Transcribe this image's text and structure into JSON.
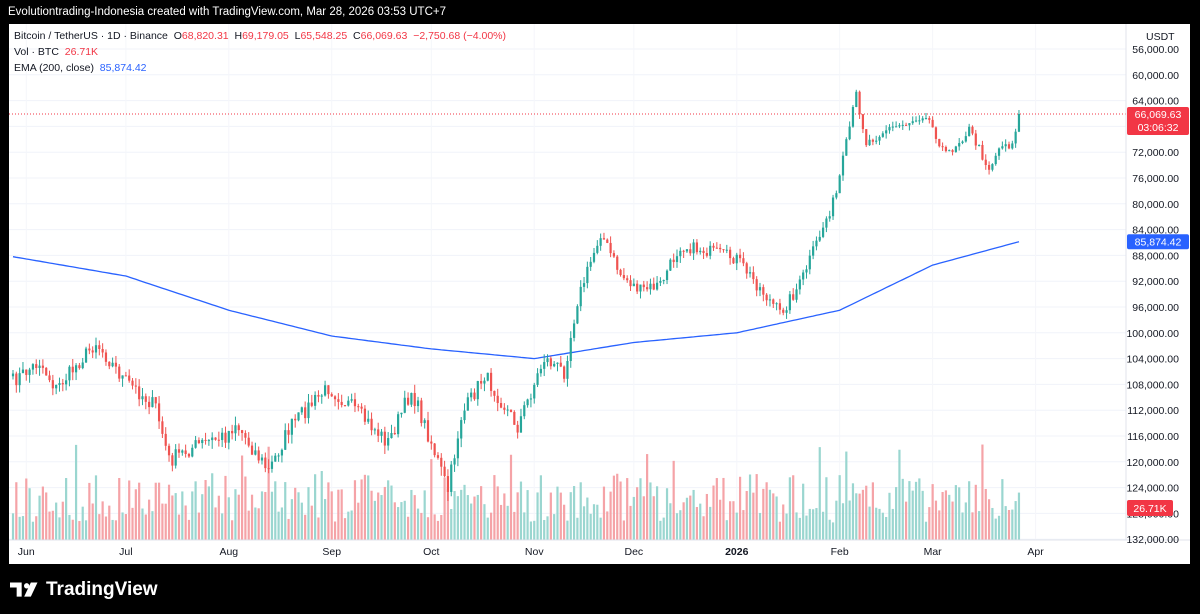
{
  "watermark_text": "Evolutiontrading-Indonesia created with TradingView.com, Mar 28, 2026 03:53 UTC+7",
  "legend": {
    "symbol": "Bitcoin / TetherUS · 1D · Binance",
    "open_label": "O",
    "open": "68,820.31",
    "high_label": "H",
    "high": "69,179.05",
    "low_label": "L",
    "low": "65,548.25",
    "close_label": "C",
    "close": "66,069.63",
    "change": "−2,750.68 (−4.00%)",
    "vol_label": "Vol · BTC",
    "vol_value": "26.71K",
    "ema_label": "EMA (200, close)",
    "ema_value": "85,874.42"
  },
  "brand": {
    "name": "TradingView",
    "icon": "tradingview-logo-icon"
  },
  "colors": {
    "up": "#26a69a",
    "down": "#ef5350",
    "ema": "#2962ff",
    "vol_up": "#9ad6d0",
    "vol_down": "#f5a3a7",
    "price_tag": "#f23645"
  },
  "chart_data": {
    "type": "candlestick",
    "currency": "USDT",
    "y_scale": "inverted",
    "yticks": [
      "56,000.00",
      "60,000.00",
      "64,000.00",
      "68,000.00",
      "72,000.00",
      "76,000.00",
      "80,000.00",
      "84,000.00",
      "88,000.00",
      "92,000.00",
      "96,000.00",
      "100,000.00",
      "104,000.00",
      "108,000.00",
      "112,000.00",
      "116,000.00",
      "120,000.00",
      "124,000.00",
      "128,000.00",
      "132,000.00"
    ],
    "xticks": [
      "Jun",
      "Jul",
      "Aug",
      "Sep",
      "Oct",
      "Nov",
      "Dec",
      "2026",
      "Feb",
      "Mar",
      "Apr"
    ],
    "last_price": "66,069.63",
    "countdown": "03:06:32",
    "ema_last": "85,874.42",
    "volume_last": "26.71K",
    "price_keypoints": [
      {
        "date": "2025-05-28",
        "price": 107500
      },
      {
        "date": "2025-06-05",
        "price": 104500
      },
      {
        "date": "2025-06-10",
        "price": 108700
      },
      {
        "date": "2025-06-22",
        "price": 101500
      },
      {
        "date": "2025-06-30",
        "price": 107000
      },
      {
        "date": "2025-07-10",
        "price": 111500
      },
      {
        "date": "2025-07-14",
        "price": 119800
      },
      {
        "date": "2025-07-22",
        "price": 117500
      },
      {
        "date": "2025-07-31",
        "price": 116000
      },
      {
        "date": "2025-08-03",
        "price": 114000
      },
      {
        "date": "2025-08-13",
        "price": 121500
      },
      {
        "date": "2025-08-19",
        "price": 115000
      },
      {
        "date": "2025-08-24",
        "price": 112000
      },
      {
        "date": "2025-08-31",
        "price": 108500
      },
      {
        "date": "2025-09-07",
        "price": 111500
      },
      {
        "date": "2025-09-18",
        "price": 117000
      },
      {
        "date": "2025-09-25",
        "price": 109000
      },
      {
        "date": "2025-10-01",
        "price": 117000
      },
      {
        "date": "2025-10-06",
        "price": 124500
      },
      {
        "date": "2025-10-10",
        "price": 113000
      },
      {
        "date": "2025-10-17",
        "price": 106500
      },
      {
        "date": "2025-10-27",
        "price": 114500
      },
      {
        "date": "2025-11-04",
        "price": 104000
      },
      {
        "date": "2025-11-10",
        "price": 106000
      },
      {
        "date": "2025-11-14",
        "price": 95000
      },
      {
        "date": "2025-11-21",
        "price": 84500
      },
      {
        "date": "2025-11-27",
        "price": 91000
      },
      {
        "date": "2025-12-03",
        "price": 93500
      },
      {
        "date": "2025-12-09",
        "price": 92500
      },
      {
        "date": "2025-12-15",
        "price": 86500
      },
      {
        "date": "2025-12-25",
        "price": 87500
      },
      {
        "date": "2026-01-01",
        "price": 88500
      },
      {
        "date": "2026-01-14",
        "price": 97000
      },
      {
        "date": "2026-01-20",
        "price": 92500
      },
      {
        "date": "2026-01-31",
        "price": 78500
      },
      {
        "date": "2026-02-06",
        "price": 63000
      },
      {
        "date": "2026-02-09",
        "price": 70500
      },
      {
        "date": "2026-02-15",
        "price": 68500
      },
      {
        "date": "2026-02-21",
        "price": 67500
      },
      {
        "date": "2026-02-27",
        "price": 66000
      },
      {
        "date": "2026-03-05",
        "price": 72500
      },
      {
        "date": "2026-03-12",
        "price": 68500
      },
      {
        "date": "2026-03-18",
        "price": 74500
      },
      {
        "date": "2026-03-22",
        "price": 70500
      },
      {
        "date": "2026-03-25",
        "price": 71000
      },
      {
        "date": "2026-03-27",
        "price": 66069.63
      }
    ],
    "ema_keypoints": [
      {
        "date": "2025-05-28",
        "value": 88200
      },
      {
        "date": "2025-07-01",
        "value": 91200
      },
      {
        "date": "2025-08-01",
        "value": 96500
      },
      {
        "date": "2025-09-01",
        "value": 100500
      },
      {
        "date": "2025-10-01",
        "value": 102500
      },
      {
        "date": "2025-11-01",
        "value": 104000
      },
      {
        "date": "2025-12-01",
        "value": 101500
      },
      {
        "date": "2026-01-01",
        "value": 100000
      },
      {
        "date": "2026-02-01",
        "value": 96500
      },
      {
        "date": "2026-03-01",
        "value": 89500
      },
      {
        "date": "2026-03-27",
        "value": 85874.42
      }
    ],
    "volume_axis_max_k": 80
  }
}
